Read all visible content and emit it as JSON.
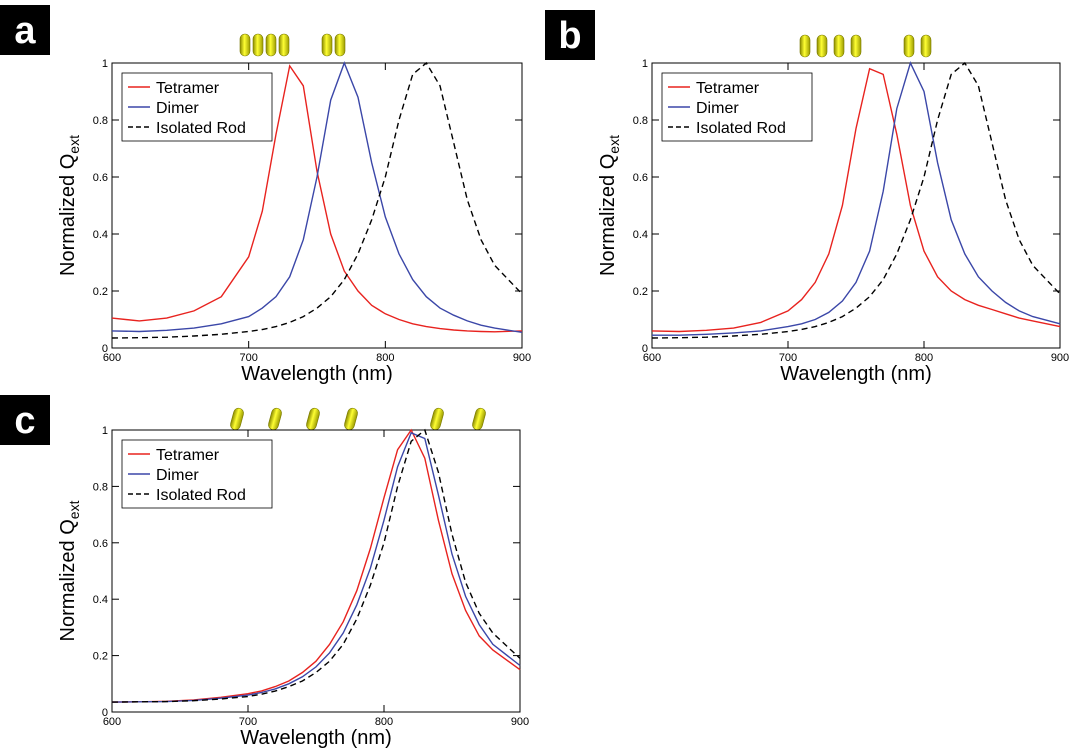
{
  "chart_data": [
    {
      "type": "line",
      "label": "a",
      "xlabel": "Wavelength (nm)",
      "ylabel": "Normalized Q",
      "ylabel_subscript": "ext",
      "x": [
        600,
        620,
        640,
        660,
        680,
        700,
        710,
        720,
        730,
        740,
        750,
        760,
        770,
        780,
        790,
        800,
        810,
        820,
        830,
        840,
        850,
        860,
        870,
        880,
        900
      ],
      "xlim": [
        600,
        900
      ],
      "ylim": [
        0,
        1
      ],
      "xticks": [
        600,
        700,
        800,
        900
      ],
      "yticks": [
        0,
        0.2,
        0.4,
        0.6,
        0.8,
        1
      ],
      "legend": "upper left",
      "series": [
        {
          "name": "Tetramer",
          "color": "#e8231f",
          "dashed": false,
          "values": [
            0.105,
            0.095,
            0.105,
            0.13,
            0.18,
            0.32,
            0.48,
            0.75,
            0.99,
            0.92,
            0.62,
            0.4,
            0.27,
            0.2,
            0.15,
            0.12,
            0.1,
            0.085,
            0.075,
            0.068,
            0.063,
            0.06,
            0.058,
            0.057,
            0.06
          ]
        },
        {
          "name": "Dimer",
          "color": "#3b47a8",
          "dashed": false,
          "values": [
            0.06,
            0.058,
            0.062,
            0.07,
            0.085,
            0.11,
            0.14,
            0.18,
            0.25,
            0.38,
            0.6,
            0.87,
            1.0,
            0.88,
            0.65,
            0.46,
            0.33,
            0.24,
            0.18,
            0.14,
            0.115,
            0.095,
            0.08,
            0.07,
            0.055
          ]
        },
        {
          "name": "Isolated Rod",
          "color": "#000000",
          "dashed": true,
          "values": [
            0.035,
            0.036,
            0.038,
            0.042,
            0.048,
            0.058,
            0.065,
            0.075,
            0.09,
            0.11,
            0.14,
            0.18,
            0.24,
            0.33,
            0.45,
            0.6,
            0.8,
            0.96,
            1.0,
            0.92,
            0.72,
            0.52,
            0.38,
            0.29,
            0.19
          ]
        }
      ]
    },
    {
      "type": "line",
      "label": "b",
      "xlabel": "Wavelength (nm)",
      "ylabel": "Normalized Q",
      "ylabel_subscript": "ext",
      "x": [
        600,
        620,
        640,
        660,
        680,
        700,
        710,
        720,
        730,
        740,
        750,
        760,
        770,
        780,
        790,
        800,
        810,
        820,
        830,
        840,
        850,
        860,
        870,
        880,
        900
      ],
      "xlim": [
        600,
        900
      ],
      "ylim": [
        0,
        1
      ],
      "xticks": [
        600,
        700,
        800,
        900
      ],
      "yticks": [
        0,
        0.2,
        0.4,
        0.6,
        0.8,
        1
      ],
      "legend": "upper left",
      "series": [
        {
          "name": "Tetramer",
          "color": "#e8231f",
          "dashed": false,
          "values": [
            0.06,
            0.058,
            0.062,
            0.07,
            0.09,
            0.13,
            0.17,
            0.23,
            0.33,
            0.5,
            0.77,
            0.98,
            0.96,
            0.75,
            0.5,
            0.34,
            0.25,
            0.2,
            0.17,
            0.15,
            0.135,
            0.12,
            0.105,
            0.095,
            0.075
          ]
        },
        {
          "name": "Dimer",
          "color": "#3b47a8",
          "dashed": false,
          "values": [
            0.045,
            0.045,
            0.048,
            0.053,
            0.06,
            0.075,
            0.085,
            0.1,
            0.125,
            0.165,
            0.23,
            0.34,
            0.55,
            0.84,
            1.0,
            0.9,
            0.65,
            0.45,
            0.33,
            0.25,
            0.2,
            0.16,
            0.13,
            0.11,
            0.085
          ]
        },
        {
          "name": "Isolated Rod",
          "color": "#000000",
          "dashed": true,
          "values": [
            0.035,
            0.036,
            0.038,
            0.042,
            0.048,
            0.058,
            0.065,
            0.075,
            0.09,
            0.11,
            0.14,
            0.18,
            0.24,
            0.33,
            0.45,
            0.6,
            0.8,
            0.96,
            1.0,
            0.92,
            0.72,
            0.52,
            0.38,
            0.29,
            0.19
          ]
        }
      ]
    },
    {
      "type": "line",
      "label": "c",
      "xlabel": "Wavelength (nm)",
      "ylabel": "Normalized Q",
      "ylabel_subscript": "ext",
      "x": [
        600,
        620,
        640,
        660,
        680,
        700,
        710,
        720,
        730,
        740,
        750,
        760,
        770,
        780,
        790,
        800,
        810,
        820,
        830,
        840,
        850,
        860,
        870,
        880,
        900
      ],
      "xlim": [
        600,
        900
      ],
      "ylim": [
        0,
        1
      ],
      "xticks": [
        600,
        700,
        800,
        900
      ],
      "yticks": [
        0,
        0.2,
        0.4,
        0.6,
        0.8,
        1
      ],
      "legend": "upper left",
      "series": [
        {
          "name": "Tetramer",
          "color": "#e8231f",
          "dashed": false,
          "values": [
            0.035,
            0.036,
            0.038,
            0.043,
            0.052,
            0.065,
            0.075,
            0.09,
            0.11,
            0.14,
            0.18,
            0.24,
            0.32,
            0.43,
            0.58,
            0.76,
            0.93,
            1.0,
            0.9,
            0.68,
            0.49,
            0.36,
            0.27,
            0.22,
            0.15
          ]
        },
        {
          "name": "Dimer",
          "color": "#3b47a8",
          "dashed": false,
          "values": [
            0.035,
            0.036,
            0.037,
            0.041,
            0.049,
            0.06,
            0.069,
            0.082,
            0.1,
            0.125,
            0.16,
            0.21,
            0.28,
            0.38,
            0.51,
            0.68,
            0.87,
            0.99,
            0.97,
            0.77,
            0.56,
            0.41,
            0.31,
            0.24,
            0.165
          ]
        },
        {
          "name": "Isolated Rod",
          "color": "#000000",
          "dashed": true,
          "values": [
            0.035,
            0.036,
            0.037,
            0.04,
            0.046,
            0.055,
            0.063,
            0.074,
            0.09,
            0.11,
            0.14,
            0.18,
            0.24,
            0.33,
            0.45,
            0.6,
            0.8,
            0.96,
            1.0,
            0.85,
            0.63,
            0.46,
            0.35,
            0.28,
            0.19
          ]
        }
      ]
    }
  ]
}
